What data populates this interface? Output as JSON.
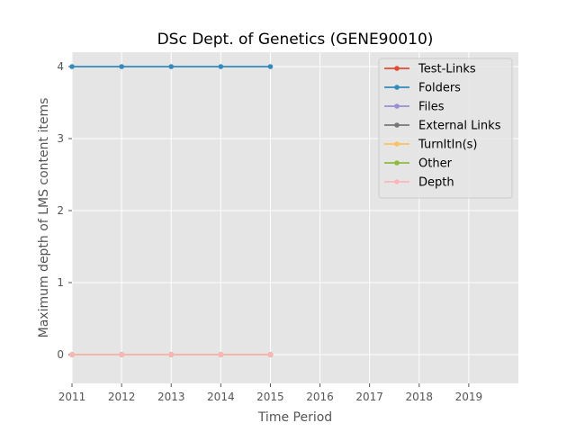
{
  "chart_data": {
    "type": "line",
    "title": "DSc Dept. of Genetics (GENE90010)",
    "xlabel": "Time Period",
    "ylabel": "Maximum depth of LMS content items",
    "xlim": [
      2011,
      2020
    ],
    "ylim": [
      -0.4,
      4.2
    ],
    "x_ticks": [
      2011,
      2012,
      2013,
      2014,
      2015,
      2016,
      2017,
      2018,
      2019
    ],
    "y_ticks": [
      0,
      1,
      2,
      3,
      4
    ],
    "grid": true,
    "legend_position": "top-right",
    "x": [
      2011,
      2012,
      2013,
      2014,
      2015
    ],
    "series": [
      {
        "name": "Test-Links",
        "color": "#e24a33",
        "values": [
          0,
          0,
          0,
          0,
          0
        ]
      },
      {
        "name": "Folders",
        "color": "#348abd",
        "values": [
          4,
          4,
          4,
          4,
          4
        ]
      },
      {
        "name": "Files",
        "color": "#988ed5",
        "values": [
          0,
          0,
          0,
          0,
          0
        ]
      },
      {
        "name": "External Links",
        "color": "#777777",
        "values": [
          0,
          0,
          0,
          0,
          0
        ]
      },
      {
        "name": "TurnItIn(s)",
        "color": "#fbc15e",
        "values": [
          0,
          0,
          0,
          0,
          0
        ]
      },
      {
        "name": "Other",
        "color": "#8eba42",
        "values": [
          0,
          0,
          0,
          0,
          0
        ]
      },
      {
        "name": "Depth",
        "color": "#ffb5b8",
        "values": [
          0,
          0,
          0,
          0,
          0
        ]
      }
    ]
  }
}
